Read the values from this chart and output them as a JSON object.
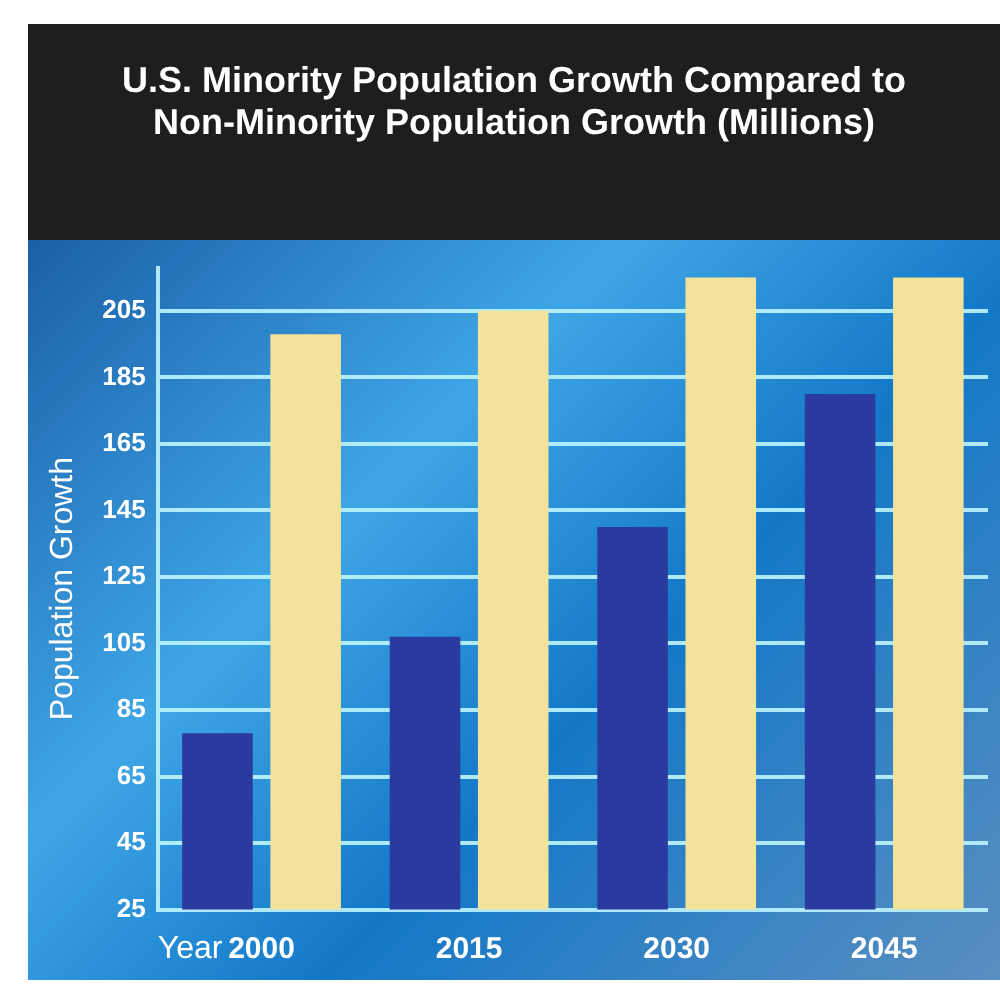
{
  "chart_data": {
    "type": "bar",
    "title": "U.S. Minority Population Growth Compared to Non-Minority Population Growth (Millions)",
    "categories": [
      "2000",
      "2015",
      "2030",
      "2045"
    ],
    "series": [
      {
        "color": "#2b3a9e",
        "values": [
          78,
          107,
          140,
          180
        ]
      },
      {
        "color": "#f3e39a",
        "values": [
          198,
          205,
          215,
          215
        ]
      }
    ],
    "xlabel": "Year",
    "ylabel": "Population Growth",
    "ylim": [
      25,
      218
    ],
    "yticks": [
      25,
      45,
      65,
      85,
      105,
      125,
      145,
      165,
      185,
      205
    ],
    "grid": "y",
    "legend": false
  }
}
